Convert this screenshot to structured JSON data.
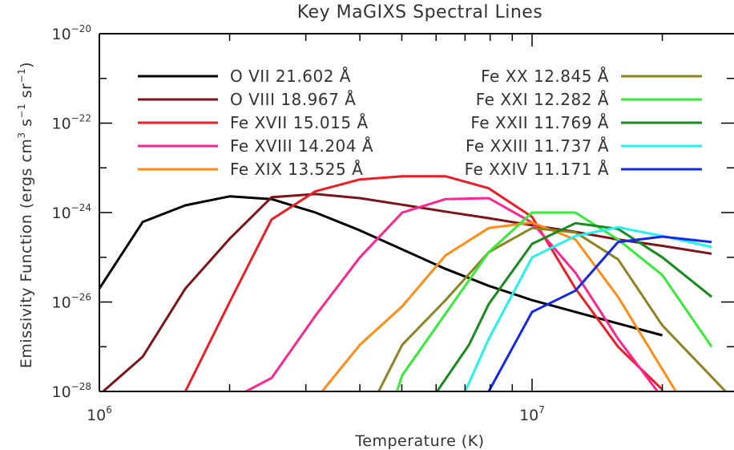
{
  "chart_data": {
    "type": "line",
    "title": "Key MaGIXS Spectral Lines",
    "xlabel": "Temperature (K)",
    "ylabel": "Emissivity Function (ergs cm",
    "ylabel_sup1": "3",
    "ylabel_mid": " s",
    "ylabel_sup2": "−1",
    "ylabel_tail": " sr",
    "ylabel_sup3": "−1",
    "ylabel_end": ")",
    "x_scale": "log",
    "y_scale": "log",
    "xlim": [
      1000000,
      26000000
    ],
    "ylim": [
      1e-28,
      1e-20
    ],
    "grid": false,
    "legend_position": "top",
    "x_ticks": [
      {
        "value": 1000000,
        "base": "10",
        "exp": "6"
      },
      {
        "value": 10000000,
        "base": "10",
        "exp": "7"
      }
    ],
    "y_ticks": [
      {
        "value": 1e-20,
        "base": "10",
        "exp": "−20"
      },
      {
        "value": 1e-22,
        "base": "10",
        "exp": "−22"
      },
      {
        "value": 1e-24,
        "base": "10",
        "exp": "−24"
      },
      {
        "value": 1e-26,
        "base": "10",
        "exp": "−26"
      },
      {
        "value": 1e-28,
        "base": "10",
        "exp": "−28"
      }
    ],
    "series": [
      {
        "name": "O VII 21.602 Å",
        "color": "#000000",
        "points": [
          [
            1000000,
            2e-26
          ],
          [
            1260000,
            6.2e-25
          ],
          [
            1580000,
            1.45e-24
          ],
          [
            2000000,
            2.3e-24
          ],
          [
            2500000,
            2e-24
          ],
          [
            3160000,
            1e-24
          ],
          [
            4000000,
            4e-25
          ],
          [
            5010000,
            1.5e-25
          ],
          [
            6310000,
            5.5e-26
          ],
          [
            7940000,
            2.3e-26
          ],
          [
            10000000,
            1.1e-26
          ],
          [
            12600000,
            6e-27
          ],
          [
            15800000,
            3.3e-27
          ],
          [
            20000000,
            1.8e-27
          ]
        ]
      },
      {
        "name": "O VIII 18.967 Å",
        "color": "#7f1418",
        "points": [
          [
            1020000,
            1e-28
          ],
          [
            1260000,
            6e-28
          ],
          [
            1580000,
            2e-26
          ],
          [
            2000000,
            2.6e-25
          ],
          [
            2500000,
            2.2e-24
          ],
          [
            3160000,
            2.6e-24
          ],
          [
            4000000,
            2.1e-24
          ],
          [
            5010000,
            1.5e-24
          ],
          [
            6310000,
            1.05e-24
          ],
          [
            7940000,
            7.5e-25
          ],
          [
            10000000,
            5.2e-25
          ],
          [
            12600000,
            3.7e-25
          ],
          [
            15800000,
            2.5e-25
          ],
          [
            20000000,
            1.8e-25
          ],
          [
            26000000,
            1.2e-25
          ]
        ]
      },
      {
        "name": "Fe XVII 15.015 Å",
        "color": "#ee1c23",
        "points": [
          [
            1580000,
            1e-28
          ],
          [
            2000000,
            1e-26
          ],
          [
            2500000,
            7e-25
          ],
          [
            3160000,
            3e-24
          ],
          [
            4000000,
            5.5e-24
          ],
          [
            5010000,
            6.5e-24
          ],
          [
            6310000,
            6.5e-24
          ],
          [
            7940000,
            3.5e-24
          ],
          [
            10000000,
            8e-25
          ],
          [
            12600000,
            2e-26
          ],
          [
            15800000,
            1e-27
          ],
          [
            20000000,
            1.1e-28
          ]
        ]
      },
      {
        "name": "Fe XVIII 14.204 Å",
        "color": "#ff2590",
        "points": [
          [
            2180000,
            1e-28
          ],
          [
            2500000,
            2e-28
          ],
          [
            3160000,
            5e-27
          ],
          [
            4000000,
            1e-25
          ],
          [
            5010000,
            1e-24
          ],
          [
            6310000,
            2e-24
          ],
          [
            7940000,
            2.1e-24
          ],
          [
            10000000,
            6e-25
          ],
          [
            12600000,
            4.5e-26
          ],
          [
            15800000,
            1.5e-27
          ],
          [
            19500000,
            1e-28
          ]
        ]
      },
      {
        "name": "Fe XIX 13.525 Å",
        "color": "#ff8c14",
        "points": [
          [
            3270000,
            1e-28
          ],
          [
            4000000,
            1.1e-27
          ],
          [
            5010000,
            8e-27
          ],
          [
            6310000,
            1.1e-25
          ],
          [
            7940000,
            4.5e-25
          ],
          [
            10000000,
            6e-25
          ],
          [
            12600000,
            2.5e-25
          ],
          [
            15800000,
            1.3e-26
          ],
          [
            21500000,
            1e-28
          ]
        ]
      },
      {
        "name": "Fe XX 12.845 Å",
        "color": "#8b8420",
        "points": [
          [
            4420000,
            1e-28
          ],
          [
            5010000,
            1.1e-27
          ],
          [
            6310000,
            1.1e-26
          ],
          [
            7940000,
            1.3e-25
          ],
          [
            10000000,
            4.5e-25
          ],
          [
            12600000,
            3.6e-25
          ],
          [
            15800000,
            9e-26
          ],
          [
            20000000,
            3e-27
          ],
          [
            28000000,
            1e-28
          ]
        ]
      },
      {
        "name": "Fe XXI 12.282 Å",
        "color": "#36ec36",
        "points": [
          [
            4870000,
            1e-28
          ],
          [
            5010000,
            2.3e-28
          ],
          [
            6310000,
            5.5e-27
          ],
          [
            7940000,
            1.3e-25
          ],
          [
            10000000,
            1e-24
          ],
          [
            12600000,
            1e-24
          ],
          [
            15800000,
            2.5e-25
          ],
          [
            20000000,
            4e-26
          ],
          [
            26000000,
            1e-27
          ]
        ]
      },
      {
        "name": "Fe XXII 11.769 Å",
        "color": "#158c1b",
        "points": [
          [
            6030000,
            1e-28
          ],
          [
            7150000,
            1.1e-27
          ],
          [
            7940000,
            9e-27
          ],
          [
            10000000,
            2e-25
          ],
          [
            12600000,
            5.8e-25
          ],
          [
            15800000,
            4.3e-25
          ],
          [
            20000000,
            1e-25
          ],
          [
            26000000,
            1.3e-26
          ]
        ]
      },
      {
        "name": "Fe XXIII 11.737 Å",
        "color": "#22f2f2",
        "points": [
          [
            7000000,
            1e-28
          ],
          [
            7940000,
            1.5e-27
          ],
          [
            10000000,
            1e-25
          ],
          [
            12600000,
            3e-25
          ],
          [
            15800000,
            4.7e-25
          ],
          [
            20000000,
            3e-25
          ],
          [
            26000000,
            1.7e-25
          ]
        ]
      },
      {
        "name": "Fe XXIV 11.171 Å",
        "color": "#1428e8",
        "points": [
          [
            7940000,
            1e-28
          ],
          [
            10000000,
            6e-27
          ],
          [
            12600000,
            1.8e-26
          ],
          [
            15800000,
            2.2e-25
          ],
          [
            20000000,
            2.9e-25
          ],
          [
            26000000,
            2.2e-25
          ]
        ]
      }
    ]
  }
}
